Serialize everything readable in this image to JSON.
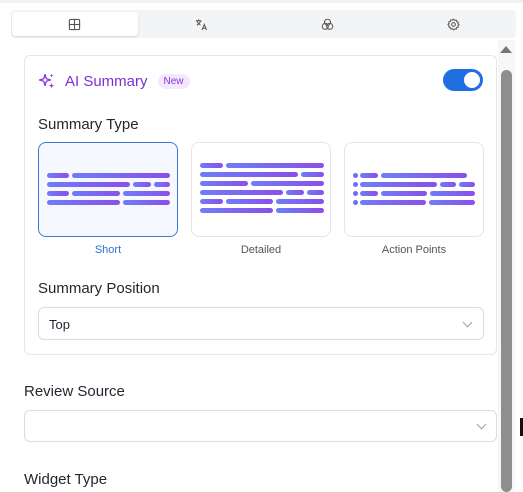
{
  "tabs": [
    {
      "icon": "layout-grid-icon"
    },
    {
      "icon": "translate-icon"
    },
    {
      "icon": "palette-icon"
    },
    {
      "icon": "settings-icon"
    }
  ],
  "ai_summary": {
    "icon": "sparkle-icon",
    "title": "AI Summary",
    "badge": "New",
    "enabled": true,
    "toggle_color": "#1f6fe3",
    "summary_type_label": "Summary Type",
    "type_options": [
      {
        "label": "Short",
        "selected": true
      },
      {
        "label": "Detailed",
        "selected": false
      },
      {
        "label": "Action Points",
        "selected": false
      }
    ],
    "summary_position_label": "Summary Position",
    "summary_position_value": "Top"
  },
  "review_source": {
    "label": "Review Source",
    "value": ""
  },
  "widget_type": {
    "label": "Widget Type"
  },
  "colors": {
    "accent": "#7a2fd6",
    "selected_border": "#3c78d8"
  }
}
